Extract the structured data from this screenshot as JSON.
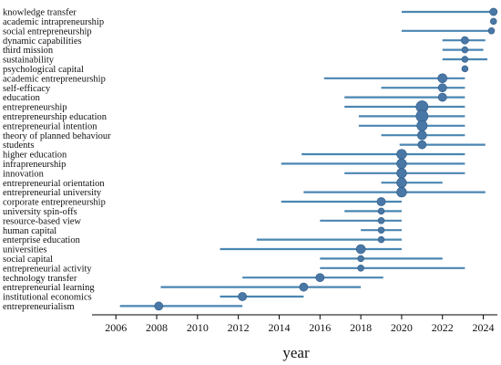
{
  "chart_data": {
    "type": "scatter",
    "xlabel": "year",
    "xlim": [
      2005.5,
      2024.6
    ],
    "xticks": [
      2006,
      2008,
      2010,
      2012,
      2014,
      2016,
      2018,
      2020,
      2022,
      2024
    ],
    "colors": {
      "range_line": "#4a86b2",
      "point_fill": "#4a78a6",
      "point_stroke": "#2e5a86",
      "axis": "#000000"
    },
    "terms": [
      {
        "term": "knowledge transfer",
        "start": 2020.0,
        "end": 2024.5,
        "peak": 2024.5,
        "freq": 2
      },
      {
        "term": "academic intrapreneurship",
        "start": 2024.5,
        "end": 2024.5,
        "peak": 2024.5,
        "freq": 1
      },
      {
        "term": "social entrepreneurship",
        "start": 2020.0,
        "end": 2024.4,
        "peak": 2024.4,
        "freq": 1
      },
      {
        "term": "dynamic capabilities",
        "start": 2022.0,
        "end": 2024.1,
        "peak": 2023.1,
        "freq": 2
      },
      {
        "term": "third mission",
        "start": 2022.0,
        "end": 2024.0,
        "peak": 2023.1,
        "freq": 1
      },
      {
        "term": "sustainability",
        "start": 2022.0,
        "end": 2024.2,
        "peak": 2023.1,
        "freq": 1
      },
      {
        "term": "psychological capital",
        "start": 2023.1,
        "end": 2023.1,
        "peak": 2023.1,
        "freq": 1
      },
      {
        "term": "academic entrepreneurship",
        "start": 2016.2,
        "end": 2023.1,
        "peak": 2022.0,
        "freq": 4
      },
      {
        "term": "self-efficacy",
        "start": 2019.0,
        "end": 2023.1,
        "peak": 2022.0,
        "freq": 3
      },
      {
        "term": "education",
        "start": 2017.2,
        "end": 2023.1,
        "peak": 2022.0,
        "freq": 3
      },
      {
        "term": "entrepreneurship",
        "start": 2017.2,
        "end": 2023.1,
        "peak": 2021.0,
        "freq": 9
      },
      {
        "term": "entrepreneurship education",
        "start": 2017.9,
        "end": 2023.1,
        "peak": 2021.0,
        "freq": 9
      },
      {
        "term": "entrepreneurial intention",
        "start": 2017.9,
        "end": 2023.1,
        "peak": 2021.0,
        "freq": 6
      },
      {
        "term": "theory of planned behaviour",
        "start": 2019.0,
        "end": 2023.1,
        "peak": 2021.0,
        "freq": 4
      },
      {
        "term": "students",
        "start": 2019.9,
        "end": 2024.1,
        "peak": 2021.0,
        "freq": 3
      },
      {
        "term": "higher education",
        "start": 2015.1,
        "end": 2023.1,
        "peak": 2020.0,
        "freq": 5
      },
      {
        "term": "infrapreneurship",
        "start": 2014.1,
        "end": 2023.1,
        "peak": 2020.0,
        "freq": 5
      },
      {
        "term": "innovation",
        "start": 2017.2,
        "end": 2023.1,
        "peak": 2020.0,
        "freq": 5
      },
      {
        "term": "entrepreneurial orientation",
        "start": 2019.0,
        "end": 2022.0,
        "peak": 2020.0,
        "freq": 5
      },
      {
        "term": "entrepreneurial university",
        "start": 2015.2,
        "end": 2024.1,
        "peak": 2020.0,
        "freq": 5
      },
      {
        "term": "corporate entrepreneurship",
        "start": 2014.1,
        "end": 2020.0,
        "peak": 2019.0,
        "freq": 3
      },
      {
        "term": "university spin-offs",
        "start": 2017.2,
        "end": 2020.0,
        "peak": 2019.0,
        "freq": 1
      },
      {
        "term": "resource-based view",
        "start": 2016.0,
        "end": 2020.0,
        "peak": 2019.0,
        "freq": 1
      },
      {
        "term": "human capital",
        "start": 2018.0,
        "end": 2020.0,
        "peak": 2019.0,
        "freq": 1
      },
      {
        "term": "enterprise education",
        "start": 2012.9,
        "end": 2020.0,
        "peak": 2019.0,
        "freq": 1
      },
      {
        "term": "universities",
        "start": 2011.1,
        "end": 2020.0,
        "peak": 2018.0,
        "freq": 4
      },
      {
        "term": "social capital",
        "start": 2016.0,
        "end": 2022.0,
        "peak": 2018.0,
        "freq": 1
      },
      {
        "term": "entrepreneurial activity",
        "start": 2016.0,
        "end": 2023.1,
        "peak": 2018.0,
        "freq": 1
      },
      {
        "term": "technology transfer",
        "start": 2012.2,
        "end": 2019.1,
        "peak": 2016.0,
        "freq": 3
      },
      {
        "term": "entrepreneurial learning",
        "start": 2008.2,
        "end": 2018.0,
        "peak": 2015.2,
        "freq": 3
      },
      {
        "term": "institutional economics",
        "start": 2011.1,
        "end": 2015.2,
        "peak": 2012.2,
        "freq": 3
      },
      {
        "term": "entrepreneurialism",
        "start": 2006.2,
        "end": 2012.2,
        "peak": 2008.1,
        "freq": 3
      }
    ]
  }
}
